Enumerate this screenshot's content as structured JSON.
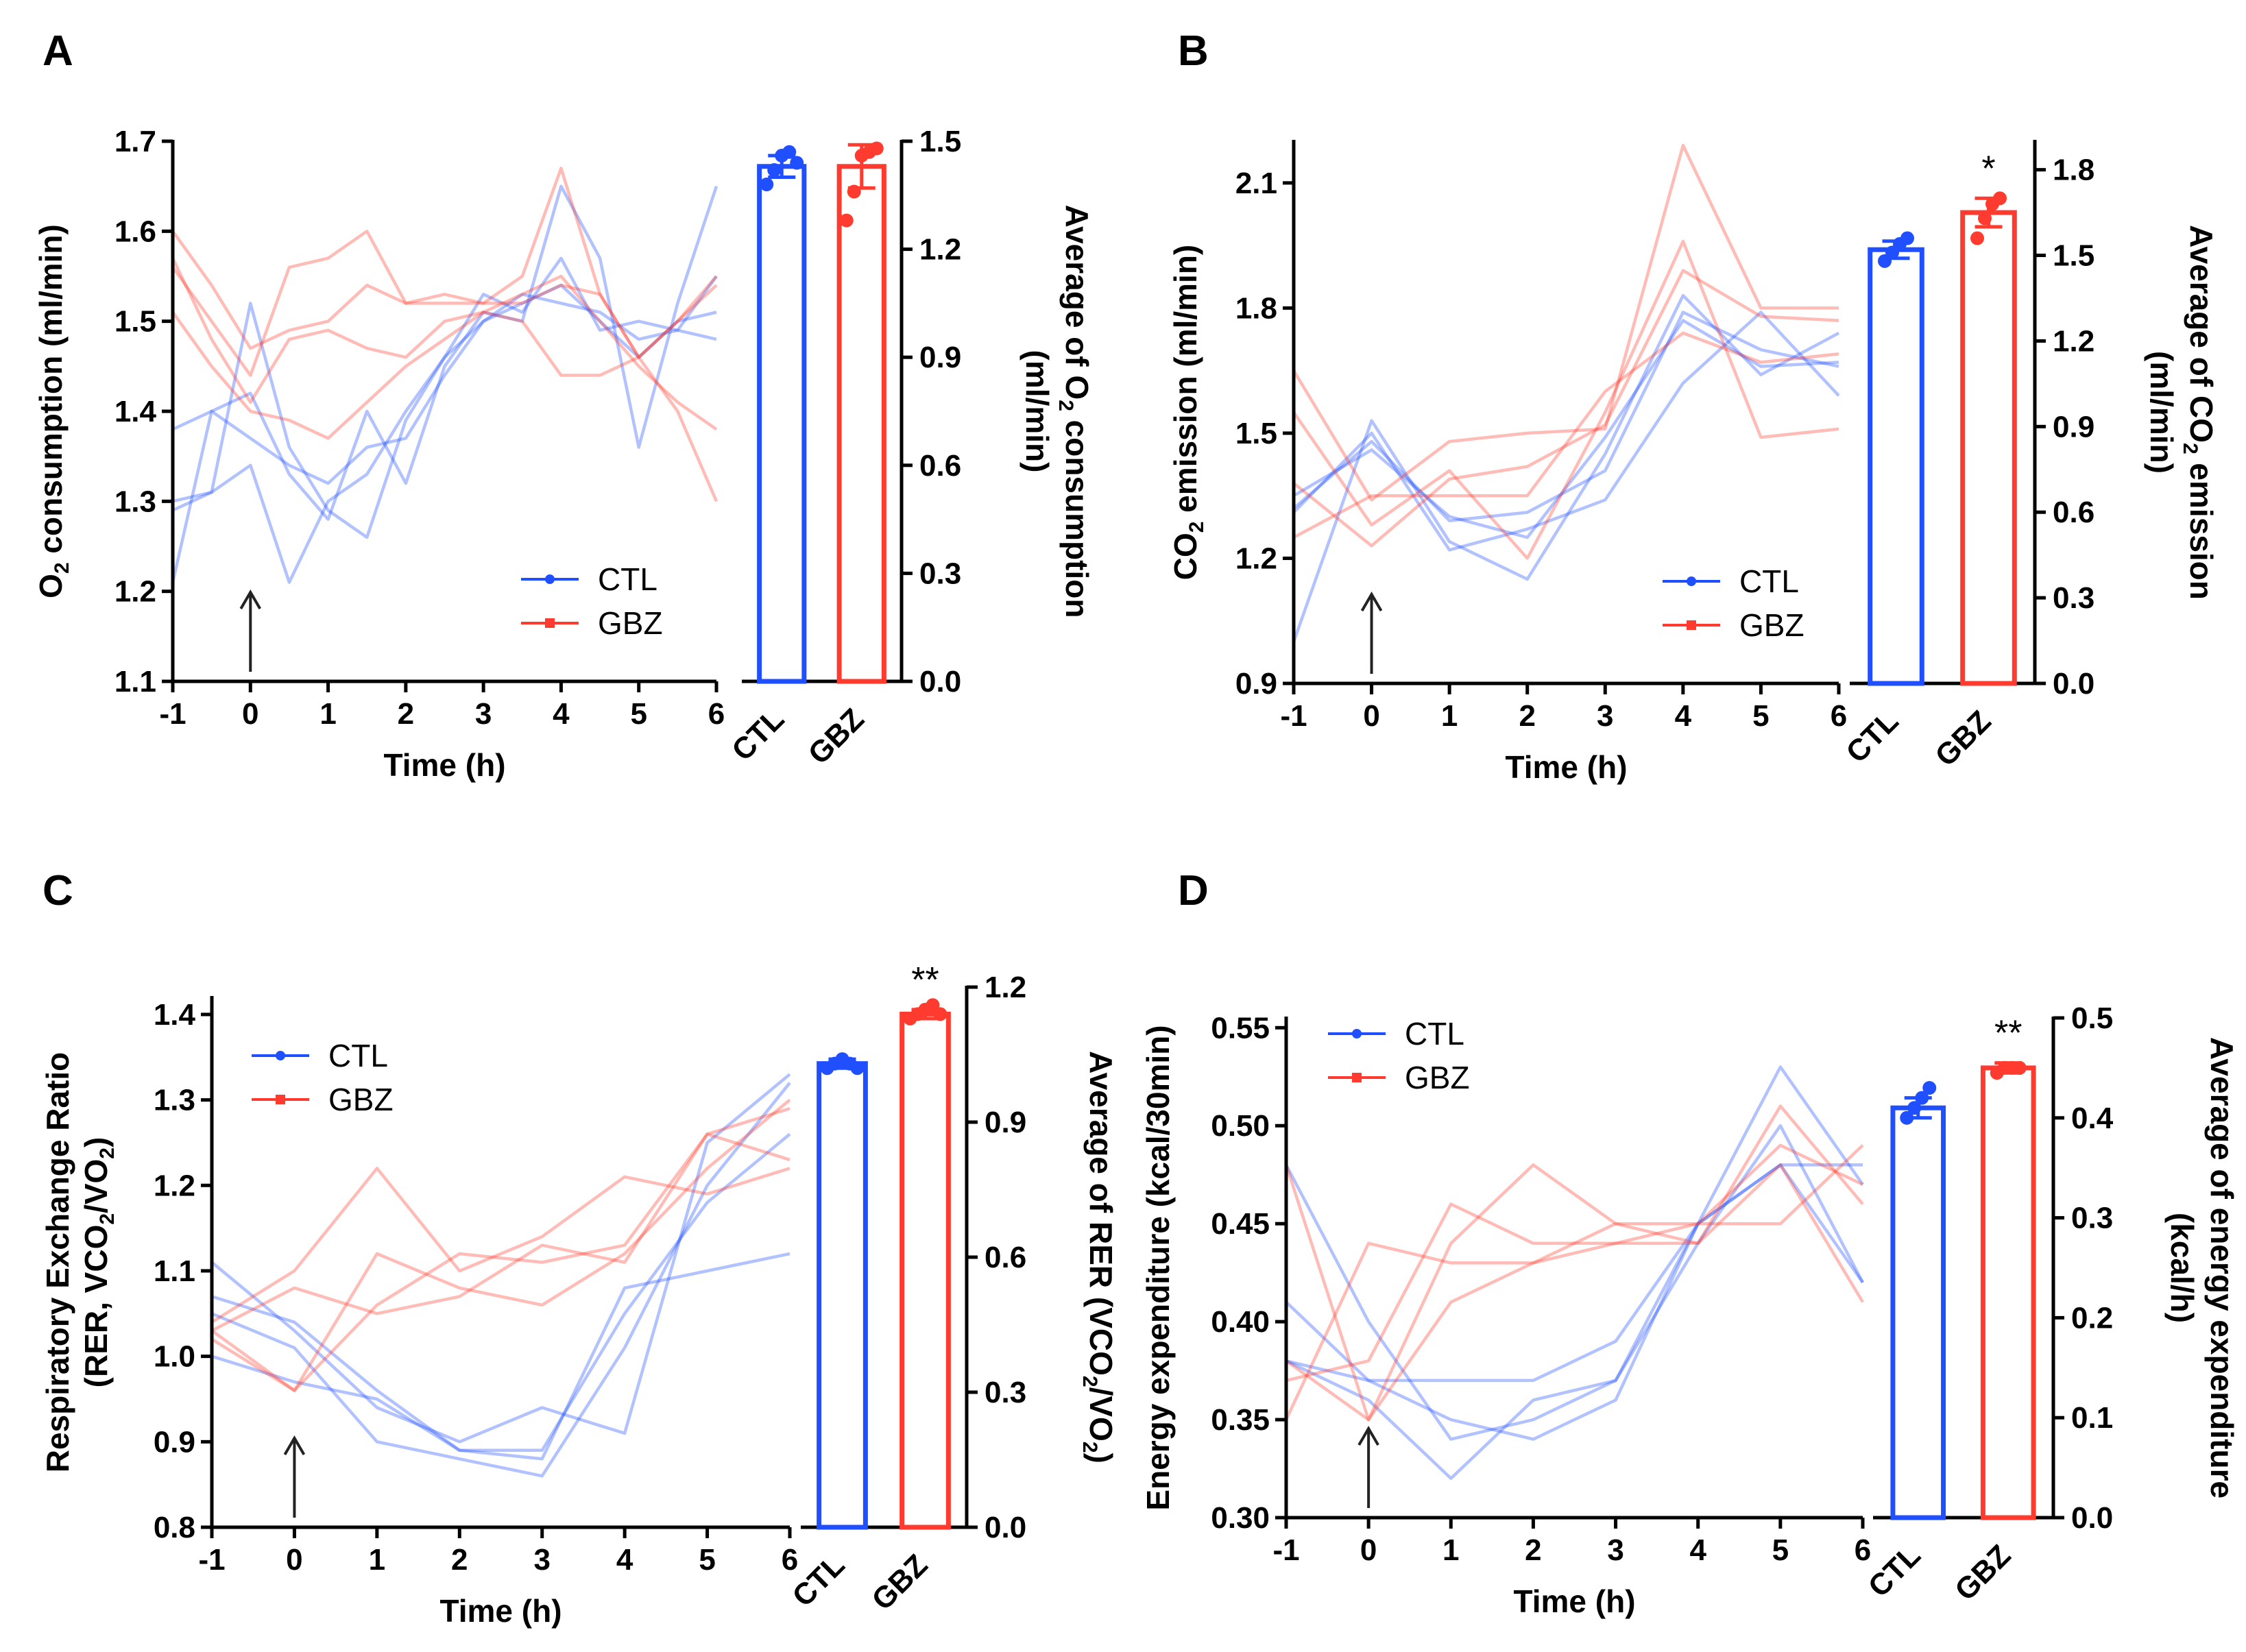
{
  "chart_data": [
    {
      "panel": "A",
      "type": "line",
      "xlabel": "Time (h)",
      "ylabel": "O2 consumption (ml/min)",
      "ylabel_parts": [
        "O",
        "2",
        " consumption (ml/min)"
      ],
      "x_ticks": [
        "-1",
        "0",
        "1",
        "2",
        "3",
        "4",
        "5",
        "6"
      ],
      "y_ticks": [
        "1.1",
        "1.2",
        "1.3",
        "1.4",
        "1.5",
        "1.6",
        "1.7"
      ],
      "xlim": [
        -1,
        6
      ],
      "ylim": [
        1.1,
        1.7
      ],
      "legend": [
        "CTL",
        "GBZ"
      ],
      "arrow_x": 0,
      "x": [
        -1,
        -0.5,
        0,
        0.5,
        1,
        1.5,
        2,
        2.5,
        3,
        3.5,
        4,
        4.5,
        5,
        5.5,
        6
      ],
      "series": [
        {
          "name": "CTL",
          "color": "#1f4fff",
          "values": [
            1.38,
            1.4,
            1.42,
            1.33,
            1.28,
            1.4,
            1.32,
            1.45,
            1.51,
            1.5,
            1.65,
            1.57,
            1.36,
            1.52,
            1.65
          ]
        },
        {
          "name": "CTL",
          "color": "#1f4fff",
          "values": [
            1.3,
            1.31,
            1.52,
            1.36,
            1.29,
            1.26,
            1.39,
            1.46,
            1.53,
            1.51,
            1.57,
            1.49,
            1.5,
            1.49,
            1.48
          ]
        },
        {
          "name": "CTL",
          "color": "#1f4fff",
          "values": [
            1.21,
            1.4,
            1.37,
            1.34,
            1.32,
            1.36,
            1.37,
            1.44,
            1.5,
            1.52,
            1.54,
            1.5,
            1.46,
            1.5,
            1.51
          ]
        },
        {
          "name": "CTL",
          "color": "#1f4fff",
          "values": [
            1.29,
            1.31,
            1.34,
            1.21,
            1.3,
            1.33,
            1.4,
            1.46,
            1.5,
            1.53,
            1.52,
            1.51,
            1.48,
            1.49,
            1.55
          ]
        },
        {
          "name": "GBZ",
          "color": "#ff3b2f",
          "values": [
            1.6,
            1.54,
            1.47,
            1.49,
            1.5,
            1.54,
            1.52,
            1.53,
            1.52,
            1.55,
            1.67,
            1.53,
            1.46,
            1.5,
            1.55
          ]
        },
        {
          "name": "GBZ",
          "color": "#ff3b2f",
          "values": [
            1.56,
            1.5,
            1.44,
            1.56,
            1.57,
            1.6,
            1.52,
            1.52,
            1.52,
            1.52,
            1.54,
            1.53,
            1.46,
            1.4,
            1.3
          ]
        },
        {
          "name": "GBZ",
          "color": "#ff3b2f",
          "values": [
            1.57,
            1.48,
            1.41,
            1.48,
            1.49,
            1.47,
            1.46,
            1.5,
            1.51,
            1.5,
            1.44,
            1.44,
            1.46,
            1.5,
            1.54
          ]
        },
        {
          "name": "GBZ",
          "color": "#ff3b2f",
          "values": [
            1.51,
            1.45,
            1.4,
            1.39,
            1.37,
            1.41,
            1.45,
            1.48,
            1.51,
            1.53,
            1.55,
            1.5,
            1.45,
            1.41,
            1.38
          ]
        }
      ],
      "bar": {
        "ylabel_lines": [
          [
            "Average of O",
            "2",
            " consumption"
          ],
          [
            "(ml/min)"
          ]
        ],
        "categories": [
          "CTL",
          "GBZ"
        ],
        "values": [
          1.43,
          1.43
        ],
        "errors": [
          0.03,
          0.06
        ],
        "points": [
          [
            1.38,
            1.42,
            1.46,
            1.47,
            1.44
          ],
          [
            1.28,
            1.36,
            1.46,
            1.47,
            1.48
          ]
        ],
        "ylim": [
          0,
          1.5
        ],
        "y_ticks": [
          "0.0",
          "0.3",
          "0.6",
          "0.9",
          "1.2",
          "1.5"
        ],
        "significance": [
          "",
          ""
        ]
      }
    },
    {
      "panel": "B",
      "type": "line",
      "xlabel": "Time (h)",
      "ylabel": "CO2 emission (ml/min)",
      "ylabel_parts": [
        "CO",
        "2",
        " emission (ml/min)"
      ],
      "x_ticks": [
        "-1",
        "0",
        "1",
        "2",
        "3",
        "4",
        "5",
        "6"
      ],
      "y_ticks": [
        "0.9",
        "1.2",
        "1.5",
        "1.8",
        "2.1"
      ],
      "xlim": [
        -1,
        6
      ],
      "ylim": [
        0.9,
        2.2
      ],
      "legend": [
        "CTL",
        "GBZ"
      ],
      "arrow_x": 0,
      "x": [
        -1,
        0,
        1,
        2,
        3,
        4,
        5,
        6
      ],
      "series": [
        {
          "name": "CTL",
          "color": "#1f4fff",
          "values": [
            1.0,
            1.53,
            1.24,
            1.15,
            1.45,
            1.83,
            1.64,
            1.74
          ]
        },
        {
          "name": "CTL",
          "color": "#1f4fff",
          "values": [
            1.32,
            1.48,
            1.29,
            1.31,
            1.41,
            1.79,
            1.7,
            1.66
          ]
        },
        {
          "name": "CTL",
          "color": "#1f4fff",
          "values": [
            1.31,
            1.5,
            1.22,
            1.27,
            1.34,
            1.62,
            1.79,
            1.59
          ]
        },
        {
          "name": "CTL",
          "color": "#1f4fff",
          "values": [
            1.35,
            1.46,
            1.3,
            1.25,
            1.49,
            1.77,
            1.66,
            1.67
          ]
        },
        {
          "name": "GBZ",
          "color": "#ff3b2f",
          "values": [
            1.65,
            1.34,
            1.48,
            1.5,
            1.51,
            2.19,
            1.8,
            1.8
          ]
        },
        {
          "name": "GBZ",
          "color": "#ff3b2f",
          "values": [
            1.55,
            1.28,
            1.41,
            1.2,
            1.55,
            1.96,
            1.49,
            1.51
          ]
        },
        {
          "name": "GBZ",
          "color": "#ff3b2f",
          "values": [
            1.38,
            1.23,
            1.39,
            1.42,
            1.52,
            1.89,
            1.78,
            1.77
          ]
        },
        {
          "name": "GBZ",
          "color": "#ff3b2f",
          "values": [
            1.25,
            1.35,
            1.35,
            1.35,
            1.6,
            1.74,
            1.67,
            1.69
          ]
        }
      ],
      "bar": {
        "ylabel_lines": [
          [
            "Average of CO",
            "2",
            " emission"
          ],
          [
            "(ml/min)"
          ]
        ],
        "categories": [
          "CTL",
          "GBZ"
        ],
        "values": [
          1.52,
          1.65
        ],
        "errors": [
          0.03,
          0.05
        ],
        "points": [
          [
            1.48,
            1.51,
            1.54,
            1.56
          ],
          [
            1.56,
            1.63,
            1.68,
            1.7
          ]
        ],
        "ylim": [
          0,
          1.9
        ],
        "y_ticks": [
          "0.0",
          "0.3",
          "0.6",
          "0.9",
          "1.2",
          "1.5",
          "1.8"
        ],
        "significance": [
          "",
          "*"
        ]
      }
    },
    {
      "panel": "C",
      "type": "line",
      "xlabel": "Time (h)",
      "ylabel_lines": [
        [
          "Respiratory Exchange Ratio"
        ],
        [
          "(RER, VCO",
          "2",
          "/VO",
          "2",
          ")"
        ]
      ],
      "x_ticks": [
        "-1",
        "0",
        "1",
        "2",
        "3",
        "4",
        "5",
        "6"
      ],
      "y_ticks": [
        "0.8",
        "0.9",
        "1.0",
        "1.1",
        "1.2",
        "1.3",
        "1.4"
      ],
      "xlim": [
        -1,
        6
      ],
      "ylim": [
        0.8,
        1.42
      ],
      "legend": [
        "CTL",
        "GBZ"
      ],
      "arrow_x": 0,
      "x": [
        -1,
        0,
        1,
        2,
        3,
        4,
        5,
        6
      ],
      "series": [
        {
          "name": "CTL",
          "color": "#1f4fff",
          "values": [
            1.11,
            1.03,
            0.94,
            0.9,
            0.94,
            0.91,
            1.25,
            1.33
          ]
        },
        {
          "name": "CTL",
          "color": "#1f4fff",
          "values": [
            1.07,
            1.04,
            0.96,
            0.89,
            0.88,
            1.08,
            1.1,
            1.12
          ]
        },
        {
          "name": "CTL",
          "color": "#1f4fff",
          "values": [
            1.05,
            1.01,
            0.9,
            0.88,
            0.86,
            1.01,
            1.2,
            1.32
          ]
        },
        {
          "name": "CTL",
          "color": "#1f4fff",
          "values": [
            1.0,
            0.97,
            0.95,
            0.89,
            0.89,
            1.05,
            1.18,
            1.26
          ]
        },
        {
          "name": "GBZ",
          "color": "#ff3b2f",
          "values": [
            1.04,
            1.1,
            1.22,
            1.1,
            1.14,
            1.21,
            1.19,
            1.22
          ]
        },
        {
          "name": "GBZ",
          "color": "#ff3b2f",
          "values": [
            1.03,
            1.08,
            1.05,
            1.07,
            1.13,
            1.11,
            1.26,
            1.23
          ]
        },
        {
          "name": "GBZ",
          "color": "#ff3b2f",
          "values": [
            1.03,
            0.96,
            1.12,
            1.08,
            1.06,
            1.12,
            1.22,
            1.3
          ]
        },
        {
          "name": "GBZ",
          "color": "#ff3b2f",
          "values": [
            1.02,
            0.96,
            1.06,
            1.12,
            1.11,
            1.13,
            1.26,
            1.29
          ]
        }
      ],
      "bar": {
        "ylabel_lines": [
          [
            "Average of RER (VCO",
            "2",
            "/VO",
            "2",
            ")"
          ]
        ],
        "categories": [
          "CTL",
          "GBZ"
        ],
        "values": [
          1.03,
          1.14
        ],
        "errors": [
          0.01,
          0.01
        ],
        "points": [
          [
            1.02,
            1.03,
            1.04,
            1.03,
            1.02
          ],
          [
            1.13,
            1.14,
            1.15,
            1.16,
            1.14
          ]
        ],
        "ylim": [
          0,
          1.2
        ],
        "y_ticks": [
          "0.0",
          "0.3",
          "0.6",
          "0.9",
          "1.2"
        ],
        "significance": [
          "",
          "**"
        ]
      }
    },
    {
      "panel": "D",
      "type": "line",
      "xlabel": "Time (h)",
      "ylabel": "Energy expenditure (kcal/30min)",
      "x_ticks": [
        "-1",
        "0",
        "1",
        "2",
        "3",
        "4",
        "5",
        "6"
      ],
      "y_ticks": [
        "0.30",
        "0.35",
        "0.40",
        "0.45",
        "0.50",
        "0.55"
      ],
      "xlim": [
        -1,
        6
      ],
      "ylim": [
        0.3,
        0.555
      ],
      "legend": [
        "CTL",
        "GBZ"
      ],
      "arrow_x": 0,
      "x": [
        -1,
        0,
        1,
        2,
        3,
        4,
        5,
        6
      ],
      "series": [
        {
          "name": "CTL",
          "color": "#1f4fff",
          "values": [
            0.41,
            0.37,
            0.37,
            0.37,
            0.39,
            0.45,
            0.53,
            0.47
          ]
        },
        {
          "name": "CTL",
          "color": "#1f4fff",
          "values": [
            0.38,
            0.37,
            0.35,
            0.34,
            0.36,
            0.45,
            0.48,
            0.48
          ]
        },
        {
          "name": "CTL",
          "color": "#1f4fff",
          "values": [
            0.38,
            0.36,
            0.32,
            0.36,
            0.37,
            0.44,
            0.5,
            0.42
          ]
        },
        {
          "name": "CTL",
          "color": "#1f4fff",
          "values": [
            0.48,
            0.4,
            0.34,
            0.35,
            0.37,
            0.45,
            0.48,
            0.42
          ]
        },
        {
          "name": "GBZ",
          "color": "#ff3b2f",
          "values": [
            0.35,
            0.44,
            0.43,
            0.43,
            0.45,
            0.45,
            0.49,
            0.47
          ]
        },
        {
          "name": "GBZ",
          "color": "#ff3b2f",
          "values": [
            0.37,
            0.38,
            0.46,
            0.44,
            0.44,
            0.44,
            0.51,
            0.46
          ]
        },
        {
          "name": "GBZ",
          "color": "#ff3b2f",
          "values": [
            0.38,
            0.35,
            0.44,
            0.48,
            0.45,
            0.44,
            0.48,
            0.41
          ]
        },
        {
          "name": "GBZ",
          "color": "#ff3b2f",
          "values": [
            0.48,
            0.35,
            0.41,
            0.43,
            0.44,
            0.45,
            0.45,
            0.49
          ]
        }
      ],
      "bar": {
        "ylabel_lines": [
          [
            "Average of energy expenditure"
          ],
          [
            "(kcal/h)"
          ]
        ],
        "categories": [
          "CTL",
          "GBZ"
        ],
        "values": [
          0.41,
          0.45
        ],
        "errors": [
          0.01,
          0.005
        ],
        "points": [
          [
            0.4,
            0.41,
            0.42,
            0.43
          ],
          [
            0.445,
            0.45,
            0.45,
            0.45
          ]
        ],
        "ylim": [
          0,
          0.5
        ],
        "y_ticks": [
          "0.0",
          "0.1",
          "0.2",
          "0.3",
          "0.4",
          "0.5"
        ],
        "significance": [
          "",
          "**"
        ]
      }
    }
  ]
}
